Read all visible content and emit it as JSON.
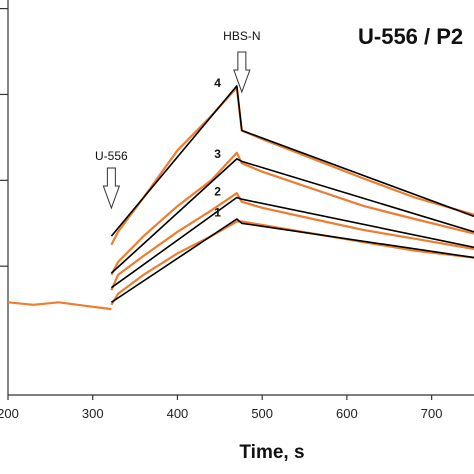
{
  "chart_data": {
    "type": "line",
    "title": "U-556 / P2",
    "xlabel": "Time, s",
    "ylabel": "",
    "xlim": [
      200,
      750
    ],
    "ylim": [
      -1,
      3.6
    ],
    "xticks": [
      200,
      300,
      400,
      500,
      600,
      700
    ],
    "grid": false,
    "annotations": [
      {
        "text": "U-556",
        "x": 322
      },
      {
        "text": "HBS-N",
        "x": 476
      }
    ],
    "series": [
      {
        "name": "4",
        "role": "fit",
        "color": "#000000",
        "x": [
          322,
          470,
          476,
          750
        ],
        "y": [
          0.85,
          2.6,
          2.08,
          1.08
        ]
      },
      {
        "name": "3",
        "role": "fit",
        "color": "#000000",
        "x": [
          322,
          470,
          476,
          750
        ],
        "y": [
          0.42,
          1.75,
          1.72,
          0.9
        ]
      },
      {
        "name": "2",
        "role": "fit",
        "color": "#000000",
        "x": [
          322,
          470,
          476,
          750
        ],
        "y": [
          0.25,
          1.3,
          1.28,
          0.72
        ]
      },
      {
        "name": "1",
        "role": "fit",
        "color": "#000000",
        "x": [
          322,
          470,
          476,
          750
        ],
        "y": [
          0.08,
          1.05,
          1.0,
          0.6
        ]
      },
      {
        "name": "data-baseline",
        "role": "data",
        "color": "#ee7d2f",
        "x": [
          200,
          230,
          260,
          290,
          322
        ],
        "y": [
          0.08,
          0.05,
          0.08,
          0.04,
          0.0
        ]
      },
      {
        "name": "data-4",
        "role": "data",
        "color": "#ee7d2f",
        "x": [
          322,
          330,
          360,
          400,
          440,
          470,
          476,
          500,
          560,
          620,
          680,
          750
        ],
        "y": [
          0.75,
          0.9,
          1.3,
          1.85,
          2.25,
          2.58,
          2.08,
          1.98,
          1.75,
          1.52,
          1.3,
          1.1
        ]
      },
      {
        "name": "data-3",
        "role": "data",
        "color": "#ee7d2f",
        "x": [
          322,
          330,
          360,
          400,
          440,
          470,
          476,
          500,
          560,
          620,
          680,
          750
        ],
        "y": [
          0.4,
          0.55,
          0.85,
          1.2,
          1.5,
          1.82,
          1.7,
          1.6,
          1.4,
          1.2,
          1.05,
          0.88
        ]
      },
      {
        "name": "data-2",
        "role": "data",
        "color": "#ee7d2f",
        "x": [
          322,
          330,
          360,
          400,
          440,
          470,
          476,
          500,
          560,
          620,
          680,
          750
        ],
        "y": [
          0.22,
          0.4,
          0.62,
          0.9,
          1.15,
          1.35,
          1.25,
          1.18,
          1.05,
          0.92,
          0.82,
          0.7
        ]
      },
      {
        "name": "data-1",
        "role": "data",
        "color": "#ee7d2f",
        "x": [
          322,
          330,
          360,
          400,
          440,
          470,
          476,
          500,
          560,
          620,
          680,
          750
        ],
        "y": [
          0.05,
          0.18,
          0.4,
          0.65,
          0.85,
          1.02,
          1.02,
          0.98,
          0.88,
          0.78,
          0.68,
          0.6
        ]
      }
    ]
  }
}
